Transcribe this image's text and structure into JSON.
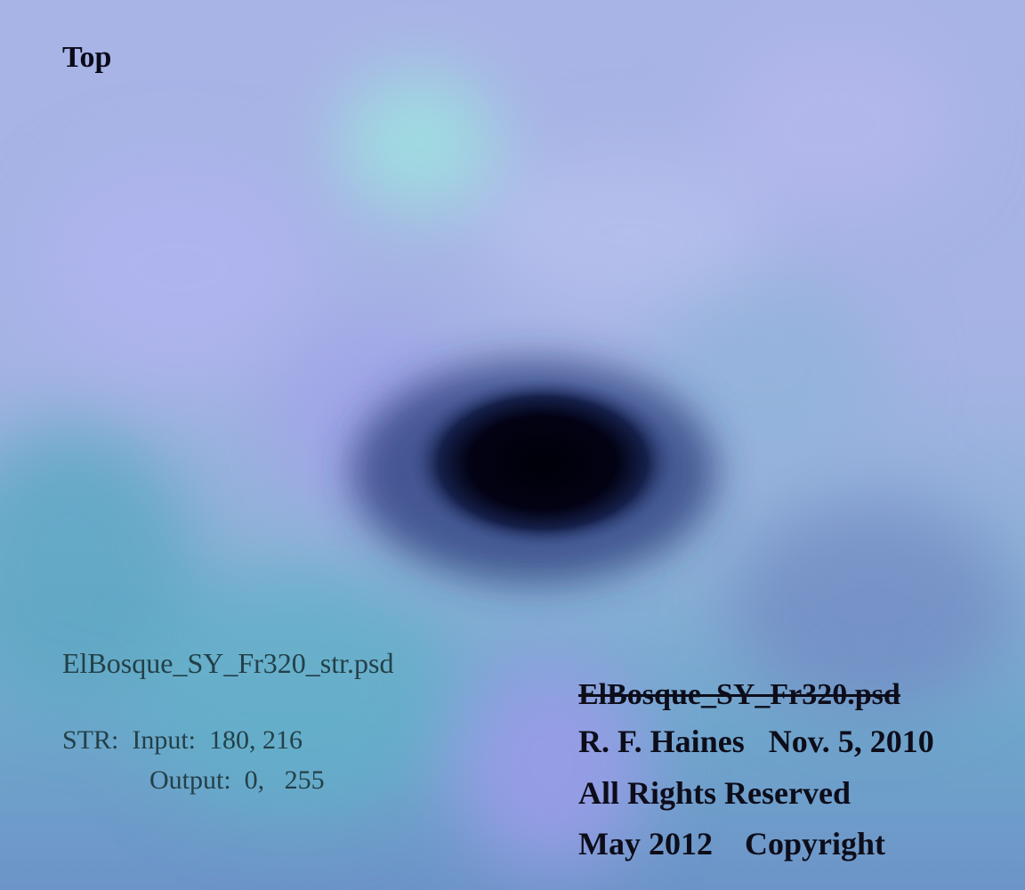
{
  "image": {
    "orientation_label": "Top",
    "file_name": "ElBosque_SY_Fr320_str.psd",
    "str_input": "STR:  Input:  180, 216",
    "str_output": "Output:  0,   255",
    "struck_file_name": "ElBosque_SY_Fr320.psd",
    "credit_line_1": "R. F. Haines   Nov. 5, 2010",
    "credit_line_2": "All Rights Reserved",
    "credit_line_3": "May 2012    Copyright"
  },
  "colors": {
    "background_top": "#a9b4e6",
    "background_bottom": "#6d94c8",
    "dark_blob": "#05050f",
    "text_dark": "#0d0d1a",
    "text_teal": "#234048"
  }
}
